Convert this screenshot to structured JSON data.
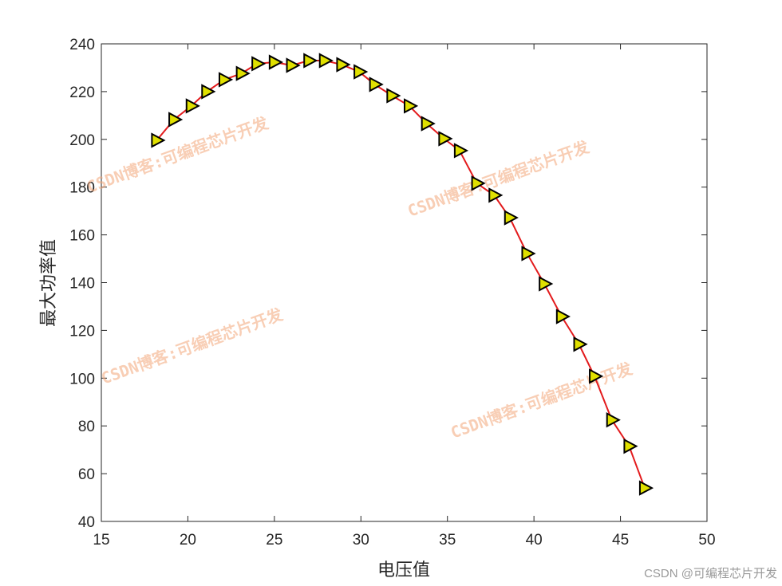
{
  "chart_data": {
    "type": "line",
    "title": "",
    "xlabel": "电压值",
    "ylabel": "最大功率值",
    "xlim": [
      15,
      50
    ],
    "ylim": [
      40,
      240
    ],
    "xticks": [
      15,
      20,
      25,
      30,
      35,
      40,
      45,
      50
    ],
    "yticks": [
      40,
      60,
      80,
      100,
      120,
      140,
      160,
      180,
      200,
      220,
      240
    ],
    "grid": false,
    "line_color": "#e31a1c",
    "marker": "triangle-right",
    "marker_face_color": "#e0e000",
    "marker_edge_color": "#000000",
    "series": [
      {
        "x": [
          18.2,
          19.2,
          20.2,
          21.1,
          22.1,
          23.1,
          24.0,
          25.0,
          26.0,
          27.0,
          27.9,
          28.9,
          29.9,
          30.8,
          31.8,
          32.8,
          33.8,
          34.8,
          35.7,
          36.7,
          37.7,
          38.6,
          39.6,
          40.6,
          41.6,
          42.6,
          43.5,
          44.5,
          45.5,
          46.4
        ],
        "y": [
          199.6,
          208.3,
          214,
          220,
          225,
          227.6,
          231.7,
          232.3,
          231,
          233,
          233,
          231.3,
          228.3,
          223,
          218.3,
          214,
          206.6,
          200.3,
          195.3,
          181.6,
          176.6,
          167.2,
          152.2,
          139.5,
          125.8,
          114.2,
          100.8,
          82.5,
          71.5,
          54
        ]
      }
    ]
  },
  "watermark": "CSDN博客:可编程芯片开发",
  "credit": "CSDN @可编程芯片开发"
}
